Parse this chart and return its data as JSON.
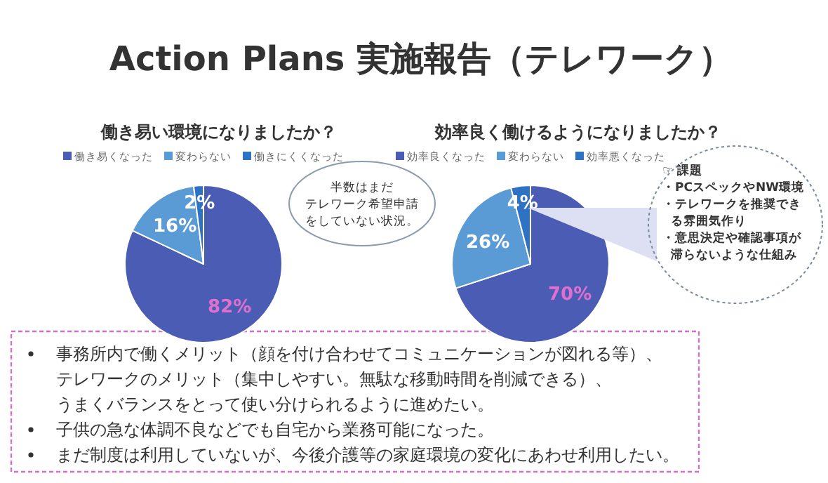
{
  "chart_data": [
    {
      "type": "other",
      "title": "Action Plans  実施報告（テレワーク）",
      "annotations": [
        "事務所内で働くメリット（顔を付け合わせてコミュニケーションが図れる等）、テレワークのメリット（集中しやすい。無駄な移動時間を削減できる）、うまくバランスをとって使い分けられるように進めたい。",
        "子供の急な体調不良などでも自宅から業務可能になった。",
        "まだ制度は利用していないが、今後介護等の家庭環境の変化にあわせ利用したい。"
      ]
    },
    {
      "type": "pie",
      "title": "働き易い環境になりましたか？",
      "categories": [
        "働き易くなった",
        "変わらない",
        "働きにくくなった"
      ],
      "values": [
        82,
        16,
        2
      ],
      "colors": [
        "#4a5cb3",
        "#5b9bd5",
        "#2e72c4"
      ],
      "value_labels": [
        "82%",
        "16%",
        "2%"
      ],
      "legend": "top",
      "annotations": [
        "半数はまだ",
        "テレワーク希望申請",
        "をしていない状況。"
      ]
    },
    {
      "type": "pie",
      "title": "効率良く働けるようになりましたか？",
      "categories": [
        "効率良くなった",
        "変わらない",
        "効率悪くなった"
      ],
      "values": [
        70,
        26,
        4
      ],
      "colors": [
        "#4a5cb3",
        "#5b9bd5",
        "#2e72c4"
      ],
      "value_labels": [
        "70%",
        "26%",
        "4%"
      ],
      "legend": "top",
      "annotations": [
        "☞ 課題",
        "・PCスペックやNW環境",
        "・テレワークを推奨できる雰囲気作り",
        "・意思決定や確認事項が滞らないような仕組み"
      ]
    }
  ]
}
